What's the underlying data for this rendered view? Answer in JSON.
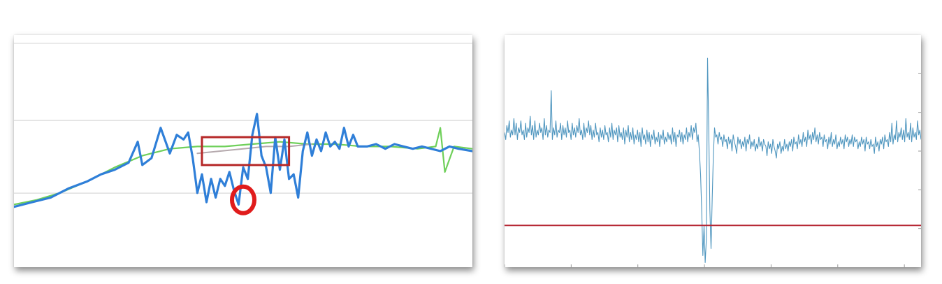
{
  "chart_data": [
    {
      "type": "line",
      "title": "",
      "xlabel": "",
      "ylabel": "",
      "grid": true,
      "xlim": [
        0,
        100
      ],
      "ylim": [
        0,
        100
      ],
      "gridlines_y": [
        31.9,
        63.2,
        96.4
      ],
      "series": [
        {
          "color": "#2f7fd8",
          "x": [
            0,
            4,
            8,
            12,
            16,
            19,
            22,
            25,
            27,
            28,
            30,
            32,
            34,
            35.5,
            37,
            38,
            39,
            40,
            41,
            42,
            43,
            44,
            45,
            46,
            47,
            48,
            49,
            50,
            51,
            52,
            53,
            54,
            55,
            56,
            57,
            58,
            59,
            60,
            61,
            62,
            63,
            64,
            65,
            66,
            67,
            68,
            69,
            70,
            71,
            72,
            73,
            74,
            75,
            77,
            79,
            81,
            83,
            85,
            87,
            89,
            91,
            93,
            95,
            97,
            100
          ],
          "values": [
            26,
            28,
            30,
            34,
            37,
            40,
            42,
            45,
            54,
            44,
            47,
            60,
            49,
            57,
            55,
            58,
            47,
            32,
            40,
            28,
            38,
            30,
            38,
            35,
            41,
            33,
            27,
            43,
            38,
            57,
            66,
            48,
            43,
            32,
            56,
            42,
            55,
            38,
            40,
            30,
            50,
            58,
            48,
            55,
            50,
            58,
            52,
            54,
            51,
            60,
            52,
            57,
            52,
            52,
            53,
            51,
            53,
            52,
            51,
            52,
            51,
            50,
            52,
            51,
            50
          ]
        },
        {
          "color": "#6fd05a",
          "x": [
            0,
            5,
            10,
            16,
            22,
            28,
            34,
            40,
            46,
            52,
            58,
            64,
            70,
            76,
            82,
            88,
            92,
            93,
            94,
            96,
            100
          ],
          "values": [
            27,
            29,
            32,
            37,
            43,
            48,
            51,
            52,
            52,
            53,
            54,
            53,
            53,
            52,
            52,
            51,
            52,
            60,
            41,
            52,
            51
          ]
        },
        {
          "color": "#b5a9ad",
          "x": [
            40,
            45,
            50,
            55,
            60,
            65
          ],
          "values": [
            49,
            50,
            51,
            52,
            52,
            53
          ]
        }
      ],
      "annotations": [
        {
          "shape": "rectangle",
          "color": "#b62828",
          "x": [
            41,
            60
          ],
          "y": [
            44,
            56
          ]
        },
        {
          "shape": "circle",
          "color": "#e01c1c",
          "x": 50,
          "y": 29
        }
      ]
    },
    {
      "type": "line",
      "title": "",
      "xlabel": "",
      "ylabel": "",
      "grid": false,
      "xlim": [
        0,
        100
      ],
      "ylim": [
        0,
        100
      ],
      "x_ticks": [
        0,
        16,
        32,
        48,
        64,
        80,
        96
      ],
      "series": [
        {
          "color": "#4f96bf",
          "values": [
            58,
            55,
            61,
            58,
            63,
            56,
            59,
            57,
            64,
            57,
            62,
            55,
            60,
            58,
            63,
            57,
            59,
            55,
            62,
            56,
            60,
            58,
            65,
            57,
            61,
            55,
            63,
            56,
            59,
            57,
            62,
            58,
            60,
            55,
            64,
            57,
            61,
            56,
            59,
            58,
            76,
            55,
            60,
            57,
            63,
            56,
            59,
            58,
            62,
            55,
            61,
            57,
            60,
            56,
            63,
            58,
            59,
            55,
            62,
            57,
            60,
            56,
            61,
            58,
            64,
            57,
            59,
            55,
            62,
            56,
            60,
            58,
            63,
            57,
            61,
            55,
            59,
            56,
            62,
            57,
            58,
            54,
            60,
            56,
            59,
            55,
            61,
            57,
            58,
            54,
            60,
            56,
            62,
            55,
            59,
            57,
            60,
            54,
            61,
            56,
            58,
            55,
            60,
            53,
            59,
            56,
            61,
            54,
            58,
            55,
            60,
            53,
            57,
            55,
            59,
            54,
            58,
            52,
            60,
            55,
            57,
            53,
            59,
            54,
            58,
            52,
            57,
            55,
            59,
            53,
            56,
            54,
            58,
            52,
            57,
            55,
            59,
            53,
            56,
            54,
            58,
            55,
            57,
            53,
            60,
            54,
            58,
            52,
            57,
            56,
            59,
            54,
            58,
            53,
            57,
            55,
            60,
            54,
            58,
            56,
            61,
            55,
            60,
            58,
            62,
            54,
            57,
            50,
            40,
            25,
            5,
            18,
            2,
            12,
            90,
            60,
            25,
            8,
            30,
            48,
            60,
            56,
            57,
            53,
            58,
            55,
            56,
            52,
            57,
            54,
            55,
            51,
            56,
            53,
            55,
            50,
            57,
            54,
            52,
            49,
            56,
            53,
            55,
            51,
            54,
            52,
            56,
            50,
            55,
            53,
            57,
            51,
            54,
            52,
            55,
            50,
            53,
            51,
            56,
            52,
            54,
            50,
            55,
            53,
            52,
            48,
            54,
            51,
            53,
            49,
            55,
            52,
            50,
            47,
            53,
            51,
            54,
            49,
            52,
            50,
            55,
            51,
            53,
            50,
            54,
            52,
            55,
            50,
            56,
            53,
            54,
            51,
            57,
            53,
            55,
            52,
            58,
            54,
            56,
            52,
            59,
            55,
            57,
            53,
            58,
            55,
            60,
            54,
            57,
            53,
            58,
            55,
            56,
            52,
            57,
            54,
            55,
            51,
            56,
            53,
            58,
            52,
            55,
            53,
            57,
            51,
            54,
            52,
            56,
            53,
            55,
            51,
            57,
            54,
            56,
            52,
            55,
            53,
            57,
            52,
            56,
            54,
            55,
            51,
            54,
            52,
            56,
            53,
            55,
            50,
            56,
            53,
            54,
            51,
            55,
            52,
            53,
            49,
            56,
            52,
            54,
            50,
            55,
            53,
            56,
            51,
            57,
            54,
            55,
            52,
            58,
            54,
            62,
            53,
            57,
            55,
            63,
            54,
            58,
            56,
            60,
            55,
            59,
            54,
            64,
            56,
            58,
            55,
            62,
            54,
            60,
            56,
            58,
            55,
            63,
            57,
            59,
            55
          ]
        },
        {
          "color": "#b52430",
          "x": [
            0,
            100
          ],
          "values": [
            18,
            18
          ]
        }
      ]
    }
  ]
}
